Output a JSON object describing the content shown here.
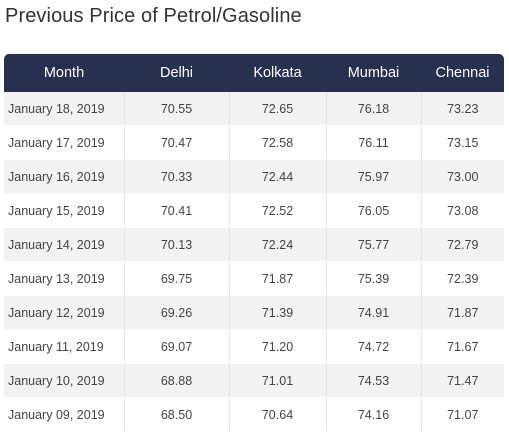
{
  "page": {
    "title": "Previous Price of Petrol/Gasoline"
  },
  "table": {
    "headers": [
      "Month",
      "Delhi",
      "Kolkata",
      "Mumbai",
      "Chennai"
    ],
    "rows": [
      [
        "January 18, 2019",
        "70.55",
        "72.65",
        "76.18",
        "73.23"
      ],
      [
        "January 17, 2019",
        "70.47",
        "72.58",
        "76.11",
        "73.15"
      ],
      [
        "January 16, 2019",
        "70.33",
        "72.44",
        "75.97",
        "73.00"
      ],
      [
        "January 15, 2019",
        "70.41",
        "72.52",
        "76.05",
        "73.08"
      ],
      [
        "January 14, 2019",
        "70.13",
        "72.24",
        "75.77",
        "72.79"
      ],
      [
        "January 13, 2019",
        "69.75",
        "71.87",
        "75.39",
        "72.39"
      ],
      [
        "January 12, 2019",
        "69.26",
        "71.39",
        "74.91",
        "71.87"
      ],
      [
        "January 11, 2019",
        "69.07",
        "71.20",
        "74.72",
        "71.67"
      ],
      [
        "January 10, 2019",
        "68.88",
        "71.01",
        "74.53",
        "71.47"
      ],
      [
        "January 09, 2019",
        "68.50",
        "70.64",
        "74.16",
        "71.07"
      ]
    ]
  },
  "colors": {
    "header_background": "#26304f",
    "header_text": "#ffffff",
    "row_stripe": "#f2f2f2",
    "body_text": "#444444"
  }
}
